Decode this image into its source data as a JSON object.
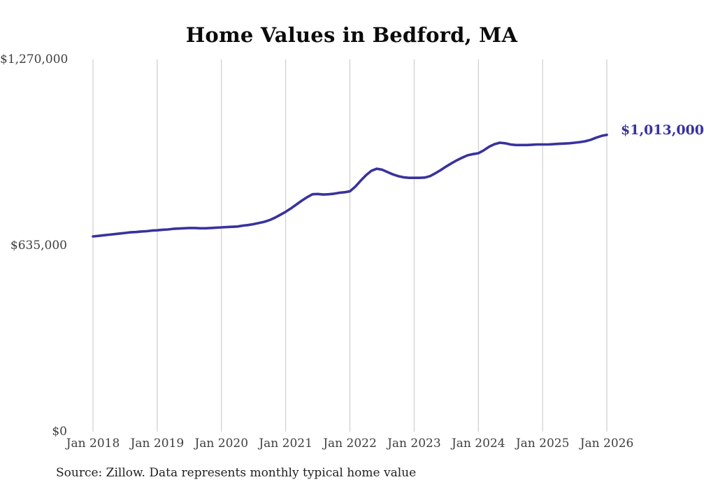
{
  "title": "Home Values in Bedford, MA",
  "source_note": "Source: Zillow. Data represents monthly typical home value",
  "colors": {
    "line": "#38329E",
    "grid": "#C4C4C4",
    "axis_text": "#3F3F3F",
    "title_text": "#0B0B0B",
    "note_text": "#1F1F1F"
  },
  "chart_data": {
    "type": "line",
    "title": "Home Values in Bedford, MA",
    "xlabel": "",
    "ylabel": "",
    "x_tick_labels": [
      "Jan 2018",
      "Jan 2019",
      "Jan 2020",
      "Jan 2021",
      "Jan 2022",
      "Jan 2023",
      "Jan 2024",
      "Jan 2025",
      "Jan 2026"
    ],
    "y_ticks": [
      0,
      635000,
      1270000
    ],
    "y_tick_labels": [
      "$0",
      "$635,000",
      "$1,270,000"
    ],
    "ylim": [
      0,
      1270000
    ],
    "grid": "vertical-only",
    "legend": "none",
    "end_annotation": "$1,013,000",
    "end_value": 1013000,
    "series": [
      {
        "name": "Typical home value",
        "frequency": "monthly",
        "x_start": "2018-01",
        "x_end": "2026-01",
        "values": [
          666000,
          668000,
          670000,
          672000,
          674000,
          676000,
          678000,
          680000,
          681000,
          683000,
          684000,
          686000,
          687000,
          689000,
          690000,
          692000,
          693000,
          694000,
          695000,
          695000,
          694000,
          694000,
          695000,
          696000,
          697000,
          698000,
          699000,
          700000,
          703000,
          705000,
          708000,
          712000,
          716000,
          722000,
          730000,
          740000,
          750000,
          762000,
          775000,
          788000,
          800000,
          810000,
          811000,
          809000,
          810000,
          812000,
          815000,
          817000,
          820000,
          836000,
          856000,
          875000,
          890000,
          897000,
          894000,
          886000,
          878000,
          872000,
          868000,
          866000,
          866000,
          866000,
          867000,
          872000,
          882000,
          893000,
          905000,
          916000,
          926000,
          935000,
          943000,
          947000,
          950000,
          960000,
          972000,
          981000,
          986000,
          984000,
          980000,
          978000,
          978000,
          978000,
          979000,
          980000,
          980000,
          980000,
          981000,
          982000,
          983000,
          984000,
          986000,
          988000,
          991000,
          996000,
          1003000,
          1009000,
          1013000
        ]
      }
    ]
  }
}
